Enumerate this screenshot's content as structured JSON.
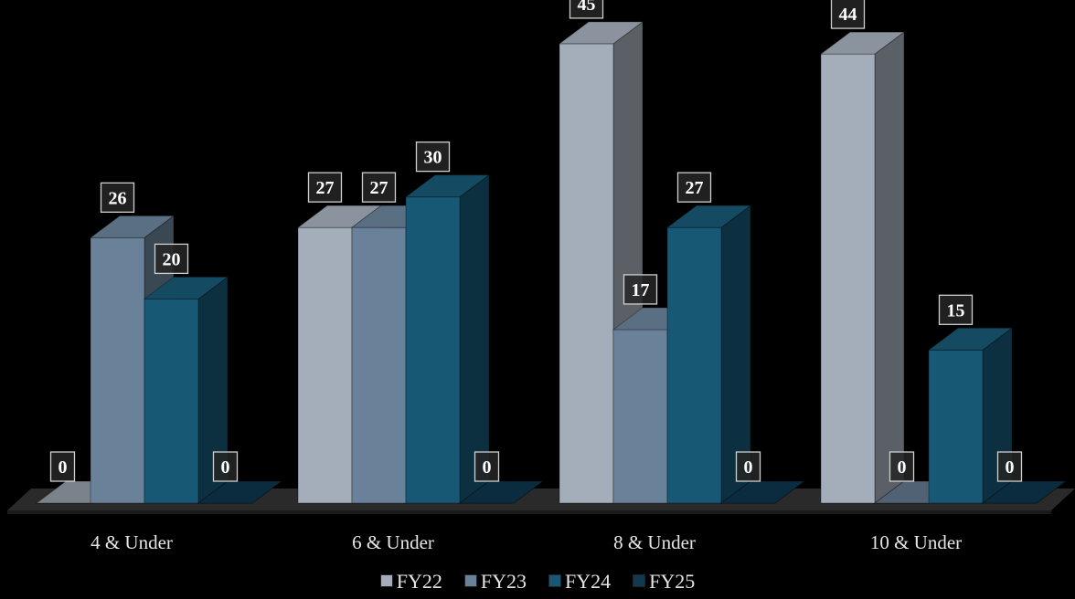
{
  "chart_data": {
    "type": "bar",
    "categories": [
      "4 & Under",
      "6 & Under",
      "8 & Under",
      "10 & Under"
    ],
    "series": [
      {
        "name": "FY22",
        "values": [
          0,
          27,
          45,
          44
        ],
        "color": "#a3aeba"
      },
      {
        "name": "FY23",
        "values": [
          26,
          27,
          17,
          0
        ],
        "color": "#6a8299"
      },
      {
        "name": "FY24",
        "values": [
          20,
          30,
          27,
          15
        ],
        "color": "#175874"
      },
      {
        "name": "FY25",
        "values": [
          0,
          0,
          0,
          0
        ],
        "color": "#0f3b52"
      }
    ],
    "ylim": [
      0,
      45
    ],
    "grid": false,
    "legend": "bottom",
    "style": "3d-clustered-column"
  }
}
